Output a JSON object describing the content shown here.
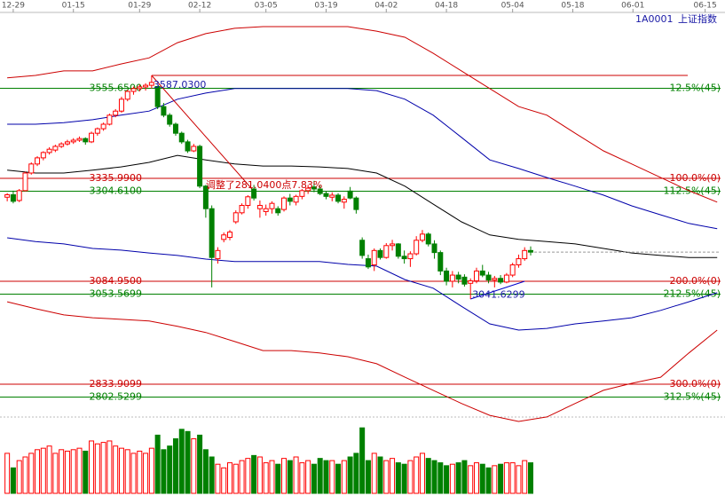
{
  "chart_data": {
    "type": "candlestick",
    "code": "1A0001",
    "name": "上证指数",
    "xlim": [
      -1.2,
      119.3
    ],
    "xticks": [
      {
        "value": 1,
        "label": "12-29"
      },
      {
        "value": 11,
        "label": "01-15"
      },
      {
        "value": 22,
        "label": "01-29"
      },
      {
        "value": 32,
        "label": "02-12"
      },
      {
        "value": 43,
        "label": "03-05"
      },
      {
        "value": 53,
        "label": "03-19"
      },
      {
        "value": 63,
        "label": "04-02"
      },
      {
        "value": 73,
        "label": "04-18"
      },
      {
        "value": 84,
        "label": "05-04"
      },
      {
        "value": 94,
        "label": "05-18"
      },
      {
        "value": 104,
        "label": "06-01"
      },
      {
        "value": 116,
        "label": "06-15"
      }
    ],
    "ylim": [
      2735,
      3771
    ],
    "up_color": "#ff0000",
    "down_color": "#008000",
    "open": [
      3290,
      3296,
      3282,
      3306,
      3349,
      3371,
      3386,
      3399,
      3405,
      3414,
      3420,
      3425,
      3429,
      3433,
      3425,
      3446,
      3457,
      3468,
      3490,
      3500,
      3529,
      3548,
      3555,
      3559,
      3563,
      3560,
      3511,
      3490,
      3468,
      3446,
      3425,
      3403,
      3414,
      3317,
      3262,
      3140,
      3187,
      3192,
      3230,
      3252,
      3270,
      3310,
      3262,
      3255,
      3262,
      3262,
      3260,
      3288,
      3278,
      3292,
      3306,
      3315,
      3310,
      3299,
      3290,
      3295,
      3278,
      3305,
      3288,
      3185,
      3140,
      3125,
      3160,
      3143,
      3172,
      3176,
      3146,
      3140,
      3152,
      3185,
      3200,
      3176,
      3155,
      3110,
      3085,
      3100,
      3095,
      3080,
      3086,
      3110,
      3100,
      3088,
      3092,
      3083,
      3100,
      3125,
      3140,
      3160
    ],
    "high": [
      3300,
      3306,
      3310,
      3352,
      3375,
      3390,
      3402,
      3412,
      3418,
      3424,
      3430,
      3434,
      3438,
      3436,
      3450,
      3460,
      3472,
      3494,
      3505,
      3535,
      3552,
      3560,
      3565,
      3568,
      3587.03,
      3562,
      3520,
      3495,
      3472,
      3450,
      3430,
      3420,
      3418,
      3320,
      3270,
      3168,
      3204,
      3210,
      3258,
      3275,
      3295,
      3320,
      3282,
      3272,
      3280,
      3268,
      3292,
      3298,
      3296,
      3310,
      3320,
      3330,
      3318,
      3305,
      3302,
      3300,
      3292,
      3315,
      3292,
      3192,
      3150,
      3165,
      3165,
      3178,
      3186,
      3178,
      3160,
      3158,
      3195,
      3210,
      3204,
      3185,
      3160,
      3118,
      3110,
      3108,
      3102,
      3092,
      3118,
      3125,
      3108,
      3098,
      3100,
      3105,
      3130,
      3150,
      3168,
      3170
    ],
    "low": [
      3280,
      3275,
      3278,
      3304,
      3345,
      3366,
      3380,
      3394,
      3400,
      3410,
      3416,
      3420,
      3425,
      3418,
      3422,
      3440,
      3452,
      3465,
      3485,
      3496,
      3524,
      3540,
      3548,
      3550,
      3555,
      3505,
      3485,
      3462,
      3440,
      3420,
      3398,
      3400,
      3312,
      3240,
      3070,
      3128,
      3180,
      3185,
      3225,
      3248,
      3262,
      3282,
      3240,
      3245,
      3250,
      3245,
      3255,
      3270,
      3270,
      3285,
      3298,
      3302,
      3295,
      3285,
      3280,
      3275,
      3262,
      3285,
      3250,
      3140,
      3115,
      3110,
      3138,
      3140,
      3160,
      3140,
      3128,
      3120,
      3148,
      3180,
      3170,
      3140,
      3100,
      3075,
      3070,
      3080,
      3072,
      3041.6299,
      3080,
      3095,
      3080,
      3070,
      3078,
      3080,
      3095,
      3118,
      3135,
      3148
    ],
    "close": [
      3296,
      3280,
      3306,
      3349,
      3371,
      3386,
      3399,
      3407,
      3414,
      3420,
      3425,
      3429,
      3433,
      3425,
      3446,
      3457,
      3468,
      3490,
      3500,
      3529,
      3548,
      3555,
      3559,
      3563,
      3570,
      3511,
      3490,
      3468,
      3446,
      3425,
      3403,
      3414,
      3317,
      3262,
      3143,
      3160,
      3198,
      3205,
      3252,
      3270,
      3291,
      3288,
      3270,
      3262,
      3275,
      3252,
      3288,
      3280,
      3292,
      3306,
      3312,
      3310,
      3299,
      3292,
      3295,
      3280,
      3285,
      3288,
      3260,
      3148,
      3120,
      3160,
      3143,
      3172,
      3176,
      3146,
      3140,
      3152,
      3185,
      3200,
      3176,
      3155,
      3110,
      3085,
      3100,
      3090,
      3078,
      3086,
      3110,
      3100,
      3088,
      3092,
      3083,
      3100,
      3125,
      3140,
      3160,
      3156
    ],
    "volume": [
      55,
      35,
      45,
      50,
      55,
      60,
      62,
      65,
      55,
      60,
      58,
      60,
      62,
      58,
      72,
      68,
      70,
      72,
      65,
      62,
      60,
      55,
      58,
      55,
      62,
      80,
      60,
      65,
      75,
      88,
      85,
      75,
      80,
      60,
      50,
      40,
      35,
      42,
      40,
      45,
      48,
      52,
      50,
      42,
      45,
      40,
      48,
      45,
      50,
      42,
      45,
      40,
      48,
      45,
      45,
      40,
      45,
      50,
      55,
      90,
      45,
      55,
      50,
      45,
      48,
      42,
      40,
      45,
      50,
      55,
      48,
      45,
      42,
      38,
      40,
      42,
      45,
      38,
      42,
      40,
      35,
      38,
      40,
      42,
      42,
      38,
      45,
      42
    ],
    "volume_ylim": [
      0,
      100
    ],
    "band_x": [
      0,
      4.7,
      9.4,
      14.2,
      18.9,
      23.6,
      28.3,
      33,
      37.8,
      42.5,
      47.2,
      51.9,
      56.6,
      61.4,
      66.1,
      70.8,
      75.5,
      80.2,
      85,
      89.7,
      94.4,
      99.1,
      103.8,
      108.6,
      113.3,
      118
    ],
    "bands": [
      {
        "color": "#cc0000",
        "values": [
          3581,
          3587,
          3598,
          3598,
          3615,
          3630,
          3667,
          3689,
          3702,
          3706,
          3706,
          3706,
          3706,
          3695,
          3680,
          3641,
          3598,
          3555,
          3511,
          3490,
          3446,
          3403,
          3371,
          3338,
          3306,
          3278
        ]
      },
      {
        "color": "#0000aa",
        "values": [
          3468,
          3468,
          3472,
          3479,
          3490,
          3500,
          3529,
          3544,
          3555,
          3555,
          3555,
          3555,
          3555,
          3550,
          3529,
          3490,
          3436,
          3381,
          3360,
          3338,
          3317,
          3295,
          3269,
          3247,
          3226,
          3213
        ]
      },
      {
        "color": "#000000",
        "values": [
          3356,
          3349,
          3349,
          3356,
          3364,
          3375,
          3392,
          3381,
          3371,
          3366,
          3366,
          3364,
          3360,
          3349,
          3317,
          3273,
          3230,
          3198,
          3187,
          3182,
          3176,
          3165,
          3154,
          3148,
          3143,
          3143
        ]
      },
      {
        "color": "#0000aa",
        "values": [
          3191,
          3182,
          3176,
          3165,
          3161,
          3154,
          3148,
          3139,
          3133,
          3133,
          3133,
          3133,
          3126,
          3122,
          3089,
          3068,
          3024,
          2981,
          2966,
          2970,
          2981,
          2988,
          2996,
          3014,
          3035,
          3057
        ]
      },
      {
        "color": "#cc0000",
        "values": [
          3035,
          3018,
          3003,
          2996,
          2992,
          2988,
          2975,
          2960,
          2938,
          2916,
          2916,
          2910,
          2901,
          2884,
          2851,
          2819,
          2787,
          2758,
          2743,
          2754,
          2787,
          2819,
          2836,
          2851,
          2910,
          2966
        ]
      }
    ],
    "levels": [
      {
        "value": 3587.03,
        "color": "#cc0000"
      },
      {
        "value": 3555.65,
        "value_label": "3555.6500",
        "ratio_label": "12.5%(45)",
        "color": "#008000"
      },
      {
        "value": 3335.99,
        "value_label": "3335.9900",
        "ratio_label": "100.0%(0)",
        "color": "#cc0000"
      },
      {
        "value": 3304.61,
        "value_label": "3304.6100",
        "ratio_label": "112.5%(45)",
        "color": "#008000"
      },
      {
        "value": 3084.95,
        "value_label": "3084.9500",
        "ratio_label": "200.0%(0)",
        "color": "#cc0000"
      },
      {
        "value": 3053.5699,
        "value_label": "3053.5699",
        "ratio_label": "212.5%(45)",
        "color": "#008000"
      },
      {
        "value": 2833.9099,
        "value_label": "2833.9099",
        "ratio_label": "300.0%(0)",
        "color": "#cc0000"
      },
      {
        "value": 2802.5299,
        "value_label": "2802.5299",
        "ratio_label": "312.5%(45)",
        "color": "#008000"
      }
    ],
    "high_label": "3587.0300",
    "low_label": "3041.6299",
    "swing_label": "调整了281.0400点7.83%"
  }
}
